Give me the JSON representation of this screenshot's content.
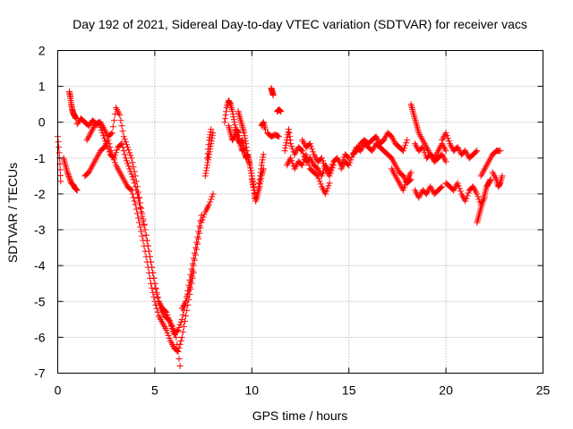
{
  "chart_data": {
    "type": "scatter",
    "title": "Day 192 of 2021, Sidereal Day-to-day VTEC variation (SDTVAR) for receiver vacs",
    "xlabel": "GPS time / hours",
    "ylabel": "SDTVAR / TECUs",
    "xlim": [
      0,
      25
    ],
    "ylim": [
      -7,
      2
    ],
    "x_ticks": [
      0,
      5,
      10,
      15,
      20,
      25
    ],
    "y_ticks": [
      -7,
      -6,
      -5,
      -4,
      -3,
      -2,
      -1,
      0,
      1,
      2
    ],
    "x_tick_labels": [
      "0",
      "5",
      "10",
      "15",
      "20",
      "25"
    ],
    "y_tick_labels": [
      "-7",
      "-6",
      "-5",
      "-4",
      "-3",
      "-2",
      "-1",
      "0",
      "1",
      "2"
    ],
    "grid": true,
    "marker": "+",
    "color": "#ff0000",
    "series": [
      {
        "name": "SDTVAR",
        "segments": [
          {
            "x": [
              0.0,
              0.1,
              0.15
            ],
            "y": [
              -0.4,
              -1.0,
              -1.65
            ]
          },
          {
            "x": [
              0.6,
              0.65,
              0.7,
              0.75,
              0.8,
              0.85,
              0.9,
              0.95
            ],
            "y": [
              0.85,
              0.7,
              0.5,
              0.35,
              0.25,
              0.2,
              0.15,
              0.1
            ]
          },
          {
            "x": [
              0.3,
              0.4,
              0.5,
              0.6,
              0.7,
              0.8,
              0.9,
              1.0
            ],
            "y": [
              -1.0,
              -1.2,
              -1.4,
              -1.55,
              -1.7,
              -1.75,
              -1.85,
              -1.9
            ]
          },
          {
            "x": [
              1.0,
              1.2,
              1.4,
              1.6,
              1.8,
              2.0,
              2.2,
              2.4,
              2.6,
              2.8,
              3.0,
              3.2,
              3.4,
              3.6,
              3.8,
              4.0,
              4.2,
              4.4,
              4.6,
              4.8,
              5.0,
              5.2,
              5.4,
              5.6,
              5.8,
              6.0,
              6.2,
              6.4,
              6.6,
              6.8,
              7.0,
              7.2,
              7.4
            ],
            "y": [
              -0.05,
              0.1,
              0.0,
              -0.1,
              0.05,
              -0.05,
              0.0,
              -0.2,
              -0.4,
              -0.3,
              0.4,
              0.2,
              -0.4,
              -0.7,
              -1.0,
              -1.5,
              -2.1,
              -2.7,
              -3.3,
              -3.9,
              -4.5,
              -5.0,
              -5.2,
              -5.3,
              -5.6,
              -5.9,
              -5.8,
              -5.5,
              -5.0,
              -4.4,
              -3.8,
              -3.2,
              -2.6
            ]
          },
          {
            "x": [
              1.4,
              1.6,
              1.8,
              2.0,
              2.2,
              2.4,
              2.6,
              2.8,
              3.0,
              3.2,
              3.4,
              3.6,
              3.8,
              4.0,
              4.2,
              4.4,
              4.6,
              4.8,
              5.0,
              5.2,
              5.4,
              5.6,
              5.8,
              6.0,
              6.2,
              6.4,
              6.6,
              6.8,
              7.0
            ],
            "y": [
              -1.5,
              -1.4,
              -1.2,
              -1.0,
              -0.8,
              -0.7,
              -0.5,
              -0.9,
              -1.2,
              -1.4,
              -1.6,
              -1.8,
              -1.9,
              -2.3,
              -2.8,
              -3.3,
              -3.9,
              -4.5,
              -5.0,
              -5.4,
              -5.6,
              -5.8,
              -6.1,
              -6.3,
              -6.4,
              -6.0,
              -5.4,
              -4.8,
              -4.2
            ]
          },
          {
            "x": [
              1.5,
              1.7,
              1.9,
              2.1,
              2.3,
              2.5,
              2.7,
              2.9,
              3.1,
              3.3,
              3.5,
              3.7,
              3.9,
              4.1,
              4.3,
              4.5,
              4.7,
              4.9,
              5.1,
              5.3,
              5.5,
              5.7,
              5.9,
              6.1,
              6.3
            ],
            "y": [
              -0.5,
              -0.3,
              -0.1,
              0.0,
              -0.3,
              -0.6,
              -0.9,
              -1.0,
              -0.7,
              -0.6,
              -1.0,
              -1.3,
              -1.6,
              -2.0,
              -2.5,
              -3.0,
              -3.6,
              -4.2,
              -4.8,
              -5.2,
              -5.4,
              -5.5,
              -5.7,
              -6.0,
              -6.8
            ]
          },
          {
            "x": [
              6.4,
              6.6,
              6.8,
              7.0,
              7.2,
              7.4,
              7.6,
              7.8,
              8.0
            ],
            "y": [
              -5.2,
              -5.0,
              -4.6,
              -4.0,
              -3.4,
              -2.8,
              -2.5,
              -2.3,
              -2.0
            ]
          },
          {
            "x": [
              7.6,
              7.7,
              7.8,
              7.9,
              8.0
            ],
            "y": [
              -1.5,
              -1.2,
              -0.9,
              -0.6,
              -0.3
            ]
          },
          {
            "x": [
              7.7,
              7.8,
              7.9
            ],
            "y": [
              -1.0,
              -0.5,
              -0.2
            ]
          },
          {
            "x": [
              8.6,
              8.7,
              8.8,
              8.9,
              9.0,
              9.1,
              9.2,
              9.3,
              9.4,
              9.5,
              9.6,
              9.7,
              9.8,
              9.9,
              10.0
            ],
            "y": [
              0.0,
              0.4,
              0.6,
              0.5,
              0.3,
              0.0,
              -0.3,
              -0.5,
              -0.6,
              -0.5,
              -0.8,
              -1.0,
              -0.9,
              -1.2,
              -1.5
            ]
          },
          {
            "x": [
              8.8,
              8.9,
              9.0,
              9.1,
              9.2,
              9.3,
              9.4,
              9.5,
              9.6,
              9.7
            ],
            "y": [
              -0.1,
              -0.3,
              -0.5,
              -0.4,
              -0.2,
              -0.3,
              -0.6,
              -0.8,
              -0.7,
              -1.0
            ]
          },
          {
            "x": [
              9.3,
              9.4,
              9.5,
              9.6,
              9.7,
              9.8,
              9.9,
              10.0,
              10.1,
              10.2,
              10.3,
              10.4,
              10.5,
              10.6
            ],
            "y": [
              0.3,
              0.1,
              -0.1,
              -0.3,
              -0.6,
              -1.0,
              -1.2,
              -1.5,
              -1.8,
              -2.2,
              -2.0,
              -1.6,
              -1.2,
              -0.9
            ]
          },
          {
            "x": [
              10.0,
              10.1,
              10.2,
              10.3,
              10.4,
              10.5,
              10.6
            ],
            "y": [
              -1.6,
              -1.9,
              -2.2,
              -2.0,
              -1.8,
              -1.5,
              -1.3
            ]
          },
          {
            "x": [
              10.5,
              10.6,
              10.7
            ],
            "y": [
              -0.1,
              0.0,
              -0.2
            ]
          },
          {
            "x": [
              11.0,
              11.05,
              11.1
            ],
            "y": [
              0.95,
              0.85,
              0.75
            ]
          },
          {
            "x": [
              10.8,
              11.0,
              11.2,
              11.4
            ],
            "y": [
              -0.3,
              -0.4,
              -0.35,
              -0.4
            ]
          },
          {
            "x": [
              11.3,
              11.4,
              11.5
            ],
            "y": [
              0.3,
              0.35,
              0.3
            ]
          },
          {
            "x": [
              11.7,
              11.8,
              11.9,
              12.0,
              12.2,
              12.4,
              12.6,
              12.8,
              13.0,
              13.2,
              13.4,
              13.6,
              13.8,
              14.0,
              14.2,
              14.4,
              14.6,
              14.8,
              15.0
            ],
            "y": [
              -0.8,
              -0.5,
              -0.2,
              -0.6,
              -0.9,
              -0.7,
              -0.8,
              -1.1,
              -1.0,
              -1.2,
              -1.3,
              -1.5,
              -1.2,
              -1.4,
              -1.1,
              -1.0,
              -1.2,
              -0.9,
              -1.0
            ]
          },
          {
            "x": [
              11.8,
              12.0,
              12.2,
              12.4,
              12.6,
              12.8,
              13.0,
              13.2,
              13.4,
              13.6,
              13.8,
              14.0
            ],
            "y": [
              -1.2,
              -1.0,
              -1.3,
              -1.1,
              -1.2,
              -0.9,
              -1.3,
              -1.4,
              -1.5,
              -1.8,
              -2.0,
              -1.7
            ]
          },
          {
            "x": [
              12.6,
              12.8,
              13.0,
              13.2,
              13.4,
              13.6,
              13.8,
              14.0,
              14.2
            ],
            "y": [
              -0.5,
              -0.7,
              -0.6,
              -0.9,
              -1.1,
              -1.0,
              -1.3,
              -1.5,
              -1.2
            ]
          },
          {
            "x": [
              14.6,
              14.8,
              15.0,
              15.2,
              15.4,
              15.6,
              15.8,
              16.0,
              16.2,
              16.4,
              16.6,
              16.8
            ],
            "y": [
              -1.3,
              -1.1,
              -1.2,
              -0.9,
              -0.8,
              -0.6,
              -0.5,
              -0.6,
              -0.5,
              -0.4,
              -0.6,
              -0.5
            ]
          },
          {
            "x": [
              15.2,
              15.4,
              15.6,
              15.8,
              16.0,
              16.2,
              16.4,
              16.6,
              16.8,
              17.0,
              17.2,
              17.4,
              17.6,
              17.8,
              18.0,
              18.2
            ],
            "y": [
              -0.9,
              -0.7,
              -0.8,
              -0.6,
              -0.7,
              -0.8,
              -0.6,
              -0.7,
              -0.8,
              -0.9,
              -1.0,
              -1.2,
              -1.4,
              -1.5,
              -1.7,
              -1.6
            ]
          },
          {
            "x": [
              16.8,
              17.0,
              17.2,
              17.4,
              17.6,
              17.8,
              18.0
            ],
            "y": [
              -0.5,
              -0.3,
              -0.4,
              -0.6,
              -0.7,
              -0.8,
              -0.5
            ]
          },
          {
            "x": [
              17.2,
              17.4,
              17.6,
              17.8,
              18.0,
              18.2
            ],
            "y": [
              -1.3,
              -1.5,
              -1.7,
              -1.9,
              -1.6,
              -1.4
            ]
          },
          {
            "x": [
              18.2,
              18.3,
              18.4,
              18.5,
              18.6,
              18.8,
              19.0,
              19.2,
              19.4,
              19.6,
              19.8,
              20.0
            ],
            "y": [
              0.5,
              0.3,
              0.1,
              -0.1,
              -0.3,
              -0.5,
              -0.7,
              -0.9,
              -1.0,
              -0.8,
              -0.6,
              -0.8
            ]
          },
          {
            "x": [
              18.4,
              18.6,
              18.8,
              19.0,
              19.2,
              19.4,
              19.6,
              19.8,
              20.0
            ],
            "y": [
              -0.6,
              -0.8,
              -0.7,
              -1.0,
              -0.9,
              -1.1,
              -1.0,
              -0.9,
              -1.1
            ]
          },
          {
            "x": [
              18.4,
              18.6,
              18.8,
              19.0,
              19.2,
              19.4,
              19.6,
              19.8
            ],
            "y": [
              -1.9,
              -2.1,
              -1.9,
              -2.0,
              -1.8,
              -2.0,
              -1.9,
              -1.8
            ]
          },
          {
            "x": [
              19.8,
              20.0,
              20.2,
              20.4,
              20.6,
              20.8,
              21.0,
              21.2,
              21.4,
              21.6
            ],
            "y": [
              -0.5,
              -0.3,
              -0.6,
              -0.8,
              -0.7,
              -0.9,
              -0.8,
              -1.0,
              -0.9,
              -0.8
            ]
          },
          {
            "x": [
              20.0,
              20.2,
              20.4,
              20.6,
              20.8,
              21.0,
              21.2,
              21.4,
              21.6,
              21.8,
              22.0
            ],
            "y": [
              -1.7,
              -1.8,
              -1.9,
              -1.7,
              -2.0,
              -2.2,
              -1.9,
              -1.8,
              -2.0,
              -2.3,
              -2.1
            ]
          },
          {
            "x": [
              21.6,
              21.7,
              21.8,
              21.9,
              22.0,
              22.1,
              22.2,
              22.3
            ],
            "y": [
              -2.8,
              -2.6,
              -2.4,
              -2.2,
              -2.0,
              -1.8,
              -1.7,
              -1.6
            ]
          },
          {
            "x": [
              21.8,
              22.0,
              22.2,
              22.4,
              22.6,
              22.8
            ],
            "y": [
              -1.5,
              -1.3,
              -1.1,
              -0.9,
              -0.8,
              -0.8
            ]
          },
          {
            "x": [
              22.4,
              22.6,
              22.7,
              22.8,
              22.9
            ],
            "y": [
              -1.4,
              -1.6,
              -1.8,
              -1.7,
              -1.5
            ]
          }
        ]
      }
    ]
  }
}
